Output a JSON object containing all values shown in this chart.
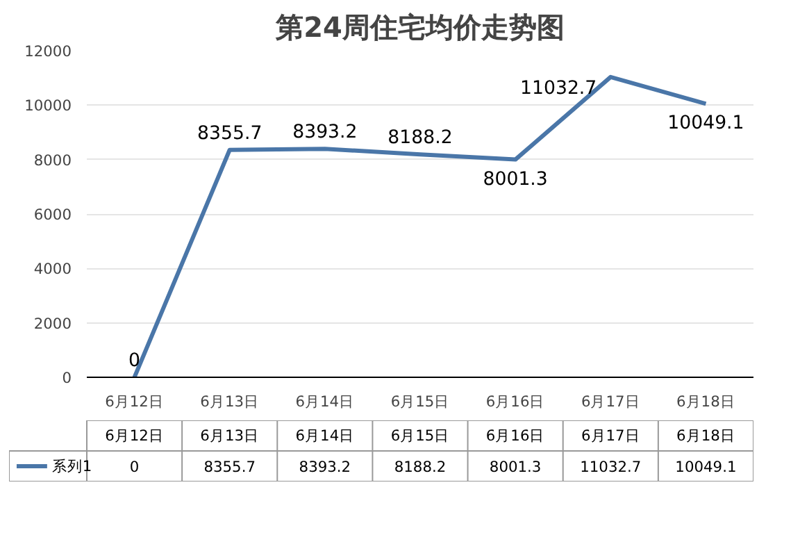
{
  "chart_data": {
    "type": "line",
    "title": "第24周住宅均价走势图",
    "categories": [
      "6月12日",
      "6月13日",
      "6月14日",
      "6月15日",
      "6月16日",
      "6月17日",
      "6月18日"
    ],
    "series": [
      {
        "name": "系列1",
        "color": "#4a76a8",
        "values": [
          0,
          8355.7,
          8393.2,
          8188.2,
          8001.3,
          11032.7,
          10049.1
        ],
        "value_labels": [
          "0",
          "8355.7",
          "8393.2",
          "8188.2",
          "8001.3",
          "11032.7",
          "10049.1"
        ]
      }
    ],
    "ylim": [
      0,
      12000
    ],
    "yticks": [
      0,
      2000,
      4000,
      6000,
      8000,
      10000,
      12000
    ],
    "grid": "y",
    "legend": "bottom",
    "marker": "none",
    "line_style": "solid"
  }
}
